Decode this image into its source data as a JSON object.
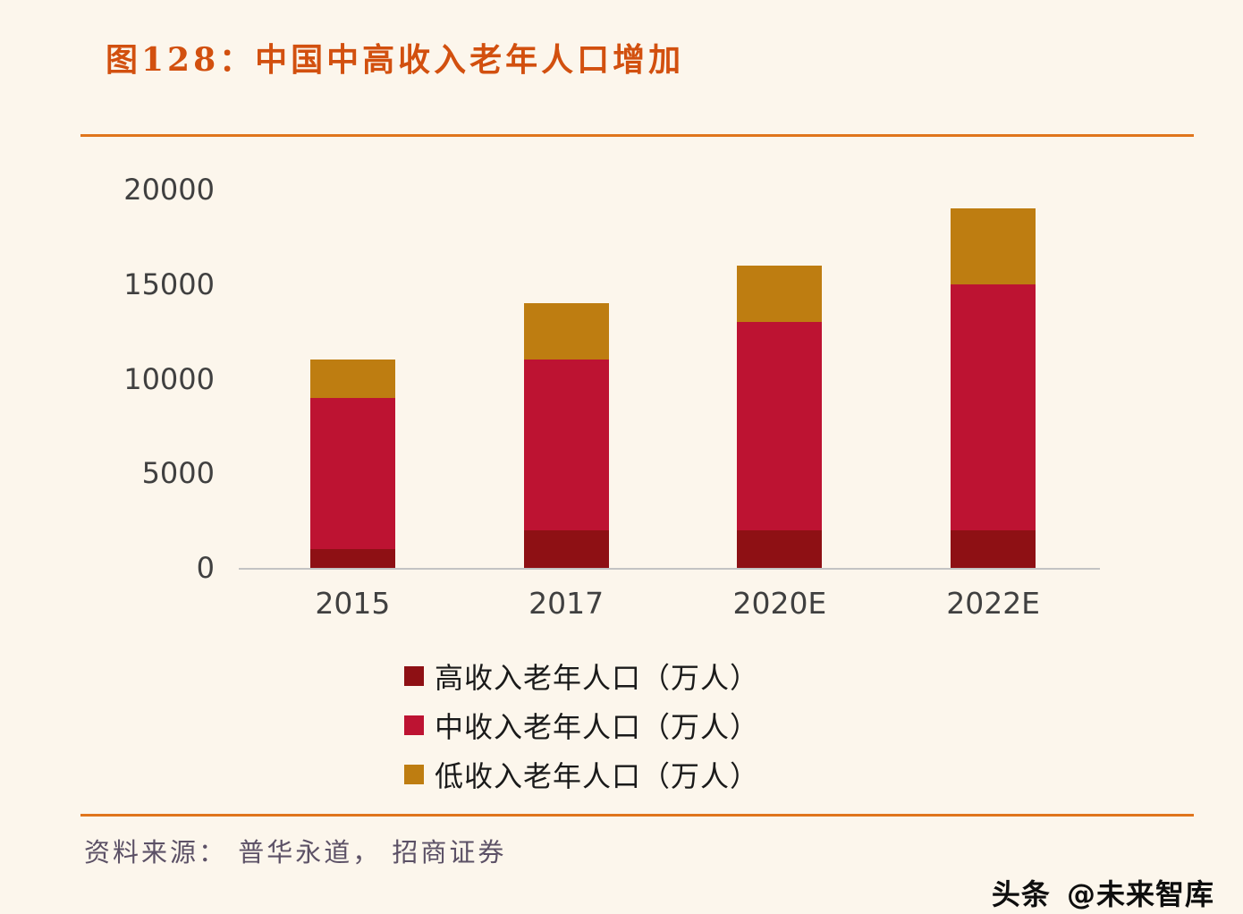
{
  "page": {
    "title": "图128：中国中高收入老年人口增加",
    "source": "资料来源： 普华永道， 招商证券",
    "watermark_brand": "头条",
    "watermark_handle": "@未来智库"
  },
  "colors": {
    "title_accent": "#D2500F",
    "divider": "#E0751C",
    "axis_text": "#404040",
    "source_text": "#5C5166",
    "background": "#FCF6EC"
  },
  "chart_data": {
    "type": "bar",
    "stacked": true,
    "title": "中国中高收入老年人口增加",
    "categories": [
      "2015",
      "2017",
      "2020E",
      "2022E"
    ],
    "series": [
      {
        "name": "高收入老年人口（万人）",
        "color": "#8E1014",
        "values": [
          1000,
          2000,
          2000,
          2000
        ]
      },
      {
        "name": "中收入老年人口（万人）",
        "color": "#BD1332",
        "values": [
          8000,
          9000,
          11000,
          13000
        ]
      },
      {
        "name": "低收入老年人口（万人）",
        "color": "#BE7D11",
        "values": [
          2000,
          3000,
          3000,
          4000
        ]
      }
    ],
    "totals": [
      11000,
      14000,
      16000,
      19000
    ],
    "xlabel": "",
    "ylabel": "",
    "ylim": [
      0,
      20000
    ],
    "yticks": [
      0,
      5000,
      10000,
      15000,
      20000
    ],
    "grid": false,
    "legend_position": "bottom"
  }
}
